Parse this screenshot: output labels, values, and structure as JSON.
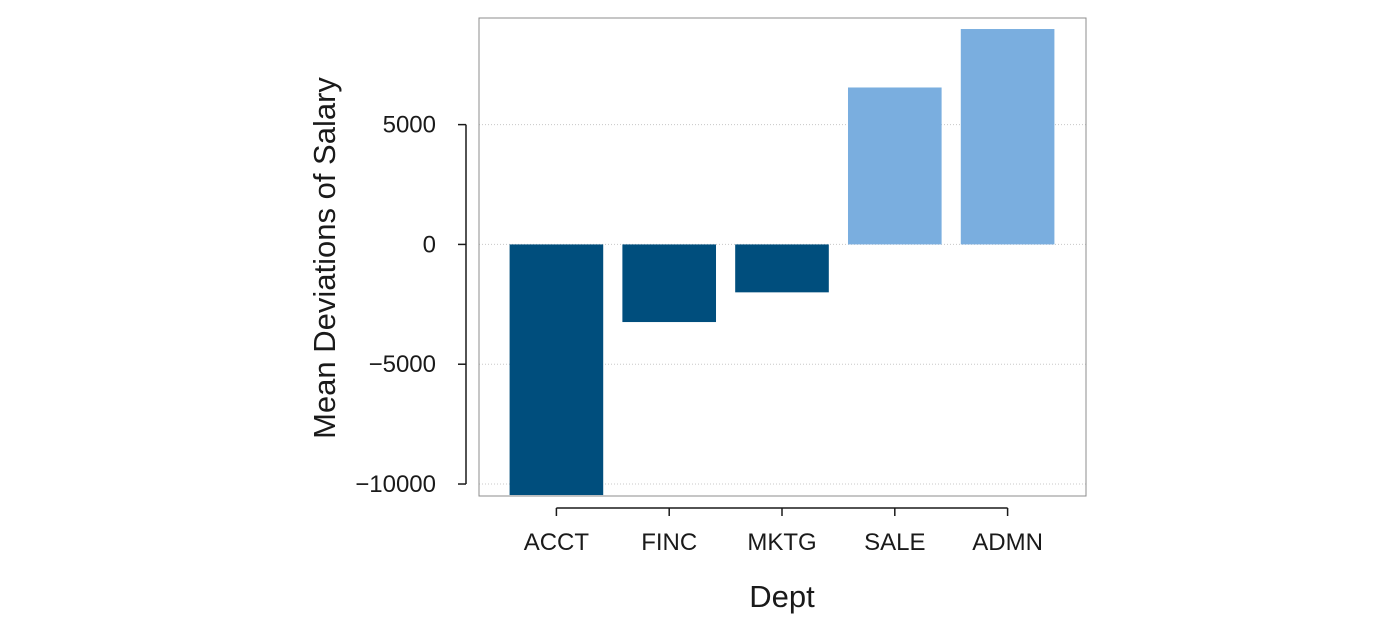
{
  "chart_data": {
    "type": "bar",
    "title": "",
    "xlabel": "Dept",
    "ylabel": "Mean Deviations of Salary",
    "categories": [
      "ACCT",
      "FINC",
      "MKTG",
      "SALE",
      "ADMN"
    ],
    "values": [
      -10460,
      -3240,
      -2000,
      6550,
      8990
    ],
    "ylim": [
      -10500,
      9450
    ],
    "yticks": [
      -10000,
      -5000,
      0,
      5000
    ],
    "ytick_labels": [
      "−10000",
      "−5000",
      "0",
      "5000"
    ],
    "grid": true,
    "legend": "none",
    "colors": {
      "negative": "#004e7d",
      "positive": "#7aaedf",
      "grid": "#c8c8c8",
      "frame": "#8c8c8c",
      "axis": "#1a1a1a"
    }
  }
}
